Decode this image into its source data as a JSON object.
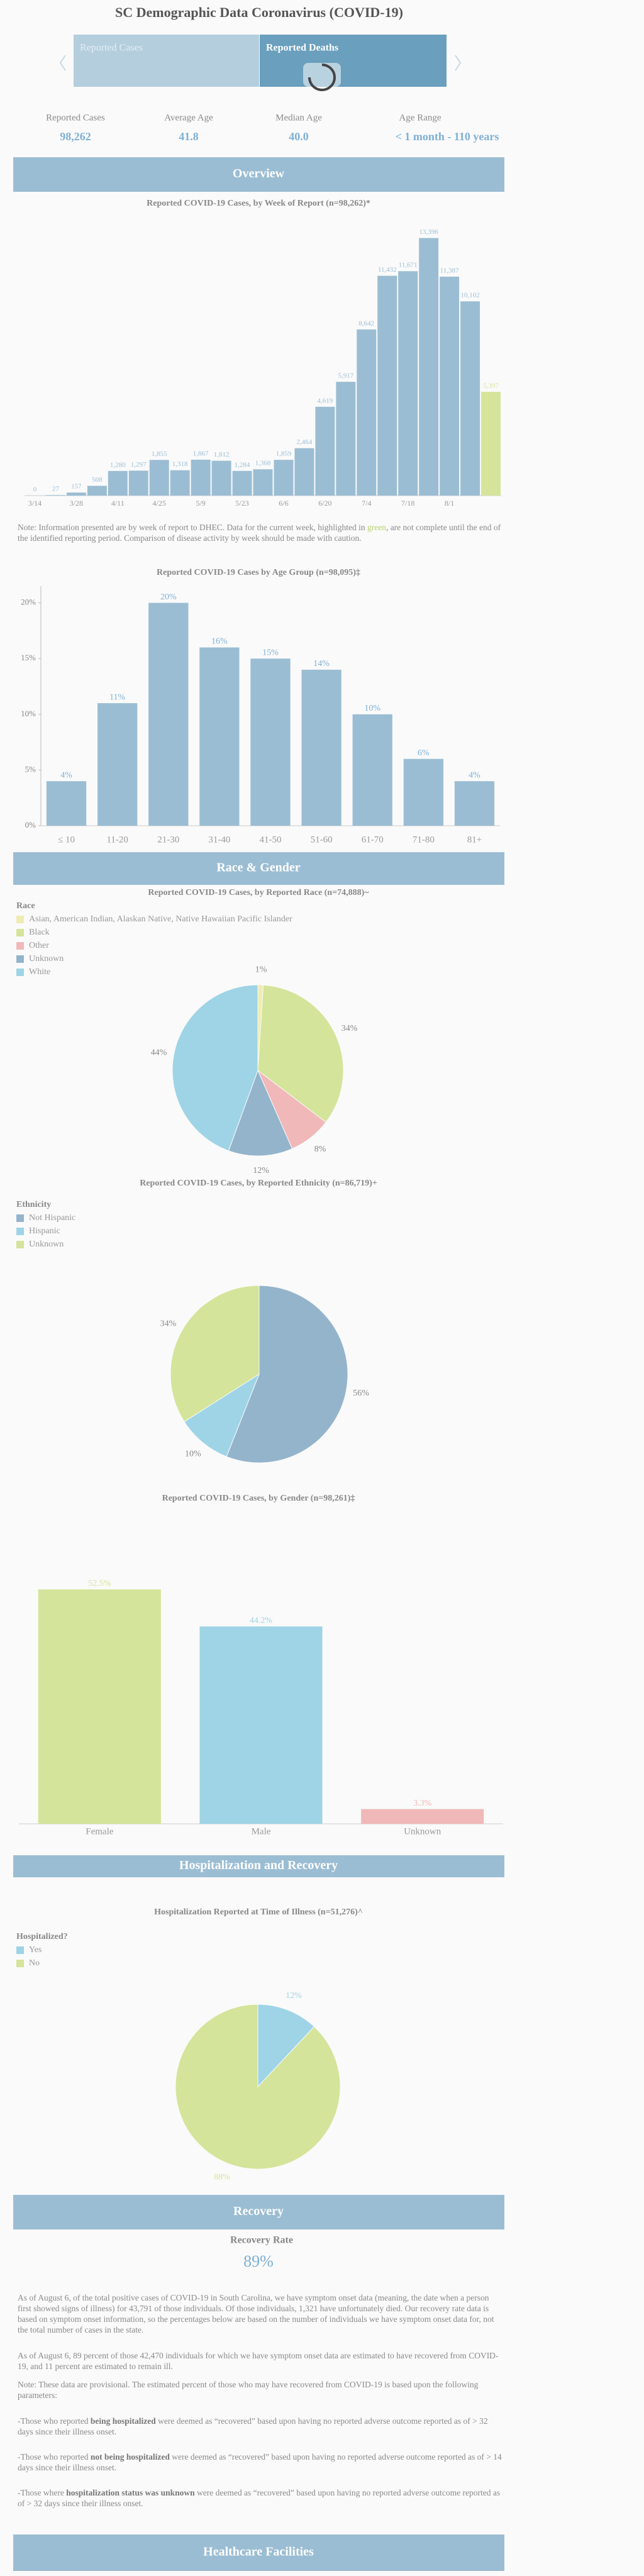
{
  "header": {
    "title": "SC Demographic Data Coronavirus (COVID-19)",
    "tabs": [
      "Reported Cases",
      "Reported Deaths"
    ]
  },
  "stats": [
    {
      "label": "Reported Cases",
      "value": "98,262"
    },
    {
      "label": "Average Age",
      "value": "41.8"
    },
    {
      "label": "Median Age",
      "value": "40.0"
    },
    {
      "label": "Age Range",
      "value": "< 1 month - 110 years"
    }
  ],
  "sections": [
    "Overview",
    "Race & Gender",
    "Hospitalization and Recovery",
    "Recovery",
    "Healthcare Facilities"
  ],
  "chart_data": [
    {
      "type": "bar",
      "title": "Reported COVID-19 Cases, by Week of Report (n=98,262)*",
      "categories": [
        "3/14",
        null,
        "3/28",
        null,
        "4/11",
        null,
        "4/25",
        null,
        "5/9",
        null,
        "5/23",
        null,
        "6/6",
        null,
        "6/20",
        null,
        "7/4",
        null,
        "7/18",
        null,
        "8/1",
        null,
        null
      ],
      "values": [
        0,
        27,
        157,
        508,
        1280,
        1297,
        1855,
        1318,
        1867,
        1812,
        1284,
        1368,
        1859,
        2464,
        4619,
        5917,
        8642,
        11432,
        11671,
        13396,
        11387,
        10102,
        5397
      ],
      "value_labels": [
        "0",
        "27",
        "157",
        "508",
        "1,280",
        "1,297",
        "1,855",
        "1,318",
        "1,867",
        "1,812",
        "1,284",
        "1,368",
        "1,859",
        "2,464",
        "4,619",
        "5,917",
        "8,642",
        "11,432",
        "11,671",
        "13,396",
        "11,387",
        "10,102",
        "5,397"
      ],
      "colors": [
        "#9bbdd3",
        "#9bbdd3",
        "#9bbdd3",
        "#9bbdd3",
        "#9bbdd3",
        "#9bbdd3",
        "#9bbdd3",
        "#9bbdd3",
        "#9bbdd3",
        "#9bbdd3",
        "#9bbdd3",
        "#9bbdd3",
        "#9bbdd3",
        "#9bbdd3",
        "#9bbdd3",
        "#9bbdd3",
        "#9bbdd3",
        "#9bbdd3",
        "#9bbdd3",
        "#9bbdd3",
        "#9bbdd3",
        "#9bbdd3",
        "#d4e49a"
      ],
      "colored_labels": true,
      "ylim": [
        0,
        14000
      ],
      "note": [
        {
          "text": "Note: Information presented are by week of report to DHEC. Data for the current week, highlighted in "
        },
        {
          "text": "green",
          "color": "#b9cf6e"
        },
        {
          "text": ", are not complete until the end of the identified reporting period. Comparison of disease activity by week should be made with caution."
        }
      ]
    },
    {
      "type": "bar",
      "title": "Reported COVID-19 Cases by Age Group (n=98,095)‡",
      "categories": [
        "≤ 10",
        "11-20",
        "21-30",
        "31-40",
        "41-50",
        "51-60",
        "61-70",
        "71-80",
        "81+"
      ],
      "values": [
        4,
        11,
        20,
        16,
        15,
        14,
        10,
        6,
        4
      ],
      "value_labels": [
        "4%",
        "11%",
        "20%",
        "16%",
        "15%",
        "14%",
        "10%",
        "6%",
        "4%"
      ],
      "color": "#9bbdd3",
      "label_color": "#7fb0d6",
      "ylim": [
        0,
        21.5
      ],
      "yticks": [
        {
          "value": 0,
          "label": "0%"
        },
        {
          "value": 5,
          "label": "5%"
        },
        {
          "value": 10,
          "label": "10%"
        },
        {
          "value": 15,
          "label": "15%"
        },
        {
          "value": 20,
          "label": "20%"
        }
      ]
    },
    {
      "type": "pie",
      "title": "Reported COVID-19 Cases, by Reported Race (n=74,888)~",
      "legend_title": "Race",
      "categories": [
        "Asian, American Indian, Alaskan Native, Native Hawaiian Pacific Islander",
        "Black",
        "Other",
        "Unknown",
        "White"
      ],
      "values": [
        1,
        34,
        8,
        12,
        44
      ],
      "value_labels": [
        "1%",
        "34%",
        "8%",
        "12%",
        "44%"
      ],
      "colors": [
        "#efecb2",
        "#d4e49a",
        "#f0b8b8",
        "#94b4cc",
        "#9ed4e6"
      ]
    },
    {
      "type": "pie",
      "title": "Reported COVID-19 Cases, by Reported Ethnicity (n=86,719)+",
      "legend_title": "Ethnicity",
      "categories": [
        "Not Hispanic",
        "Hispanic",
        "Unknown"
      ],
      "values": [
        56,
        10,
        34
      ],
      "value_labels": [
        "56%",
        "10%",
        "34%"
      ],
      "colors": [
        "#94b4cc",
        "#9ed4e6",
        "#d4e49a"
      ]
    },
    {
      "type": "bar",
      "title": "Reported COVID-19 Cases, by Gender (n=98,261)‡",
      "categories": [
        "Female",
        "Male",
        "Unknown"
      ],
      "values": [
        52.5,
        44.2,
        3.3
      ],
      "value_labels": [
        "52.5%",
        "44.2%",
        "3.3%"
      ],
      "colors": [
        "#d4e49a",
        "#9ed4e6",
        "#f0b8b8"
      ],
      "colored_labels": true,
      "ylim": [
        0,
        60
      ]
    },
    {
      "type": "pie",
      "title": "Hospitalization Reported at Time of Illness (n=51,276)^",
      "legend_title": "Hospitalized?",
      "categories": [
        "Yes",
        "No"
      ],
      "values": [
        12,
        88
      ],
      "value_labels": [
        "12%",
        "88%"
      ],
      "colors": [
        "#9ed4e6",
        "#d4e49a"
      ],
      "colored_labels": true
    }
  ],
  "recovery": {
    "label": "Recovery Rate",
    "value": "89%",
    "paragraphs": [
      [
        {
          "text": "As of August 6, of the total positive cases of COVID-19 in South Carolina, we have symptom onset data (meaning, the date when a person first showed signs of illness) for 43,791 of those individuals. Of those individuals, 1,321 have unfortunately died. Our recovery rate data is based on symptom onset information, so the percentages below are based on the number of individuals we have symptom onset data for, not the total number of cases in the state."
        }
      ],
      [
        {
          "text": "As of August 6, 89 percent of those 42,470 individuals for which we have symptom onset data are estimated to have recovered from COVID-19, and 11 percent are estimated to remain ill."
        }
      ],
      [
        {
          "text": "Note: These data are provisional. The estimated percent of those who may have recovered from COVID-19 is based upon the following parameters:"
        }
      ],
      [
        {
          "text": "-Those who reported "
        },
        {
          "text": "being hospitalized",
          "bold": true
        },
        {
          "text": " were deemed as “recovered” based upon having no reported adverse outcome reported as of > 32 days since their illness onset."
        }
      ],
      [
        {
          "text": "-Those who reported "
        },
        {
          "text": "not being hospitalized",
          "bold": true
        },
        {
          "text": " were deemed as “recovered” based upon having no reported adverse outcome reported as of > 14 days since their illness onset."
        }
      ],
      [
        {
          "text": "-Those where "
        },
        {
          "text": "hospitalization status was unknown",
          "bold": true
        },
        {
          "text": " were deemed as “recovered” based upon having no reported adverse outcome reported as of > 32 days since their illness onset."
        }
      ]
    ]
  }
}
